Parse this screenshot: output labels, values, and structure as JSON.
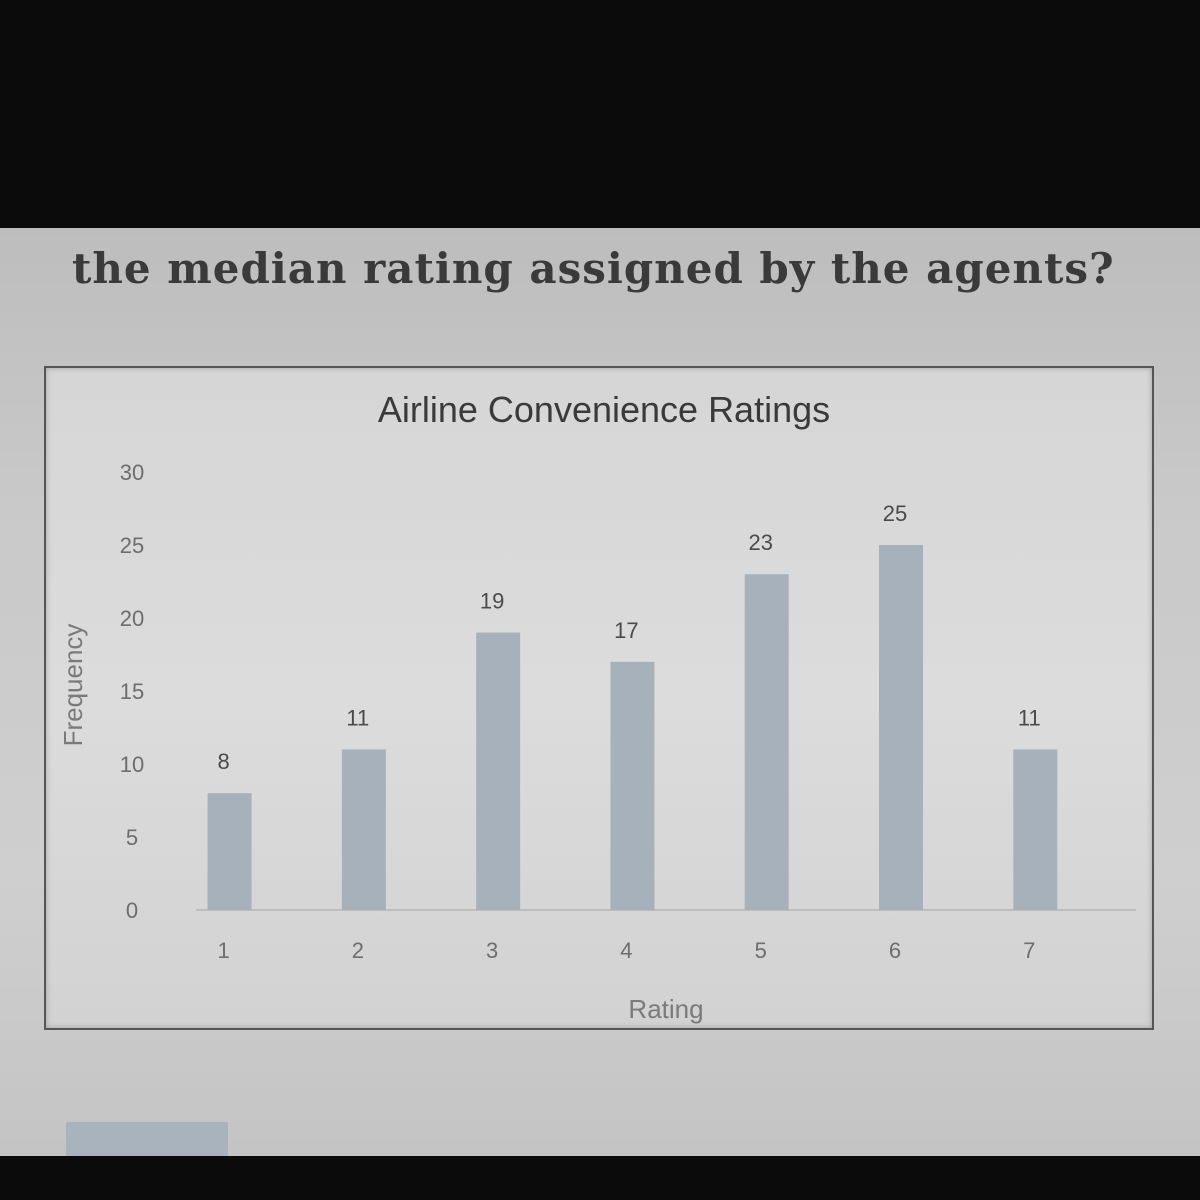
{
  "question": {
    "text": "the median rating assigned by the agents?"
  },
  "chart_data": {
    "type": "bar",
    "title": "Airline Convenience Ratings",
    "xlabel": "Rating",
    "ylabel": "Frequency",
    "categories": [
      "1",
      "2",
      "3",
      "4",
      "5",
      "6",
      "7"
    ],
    "values": [
      8,
      11,
      19,
      17,
      23,
      25,
      11
    ],
    "data_labels": [
      "8",
      "11",
      "19",
      "17",
      "23",
      "25",
      "11"
    ],
    "ylim": [
      0,
      30
    ],
    "yticks": [
      "0",
      "5",
      "10",
      "15",
      "20",
      "25",
      "30"
    ],
    "grid": false,
    "legend": "none",
    "bar_color": "#a7b1bc"
  }
}
